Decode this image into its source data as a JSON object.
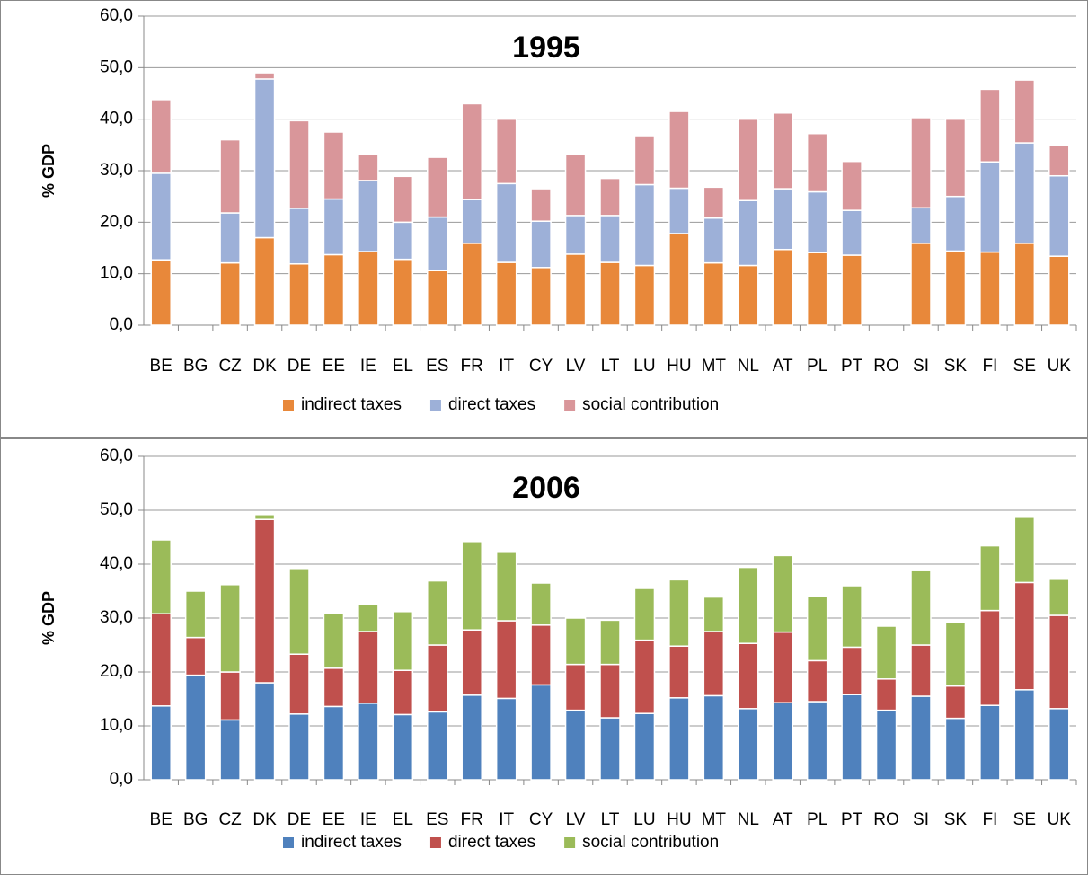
{
  "chart_data": [
    {
      "type": "bar",
      "stacked": true,
      "title": "1995",
      "y_label": "% GDP",
      "categories": [
        "BE",
        "BG",
        "CZ",
        "DK",
        "DE",
        "EE",
        "IE",
        "EL",
        "ES",
        "FR",
        "IT",
        "CY",
        "LV",
        "LT",
        "LU",
        "HU",
        "MT",
        "NL",
        "AT",
        "PL",
        "PT",
        "RO",
        "SI",
        "SK",
        "FI",
        "SE",
        "UK"
      ],
      "series": [
        {
          "name": "indirect taxes",
          "color": "#e8883a",
          "values": [
            12.7,
            null,
            12.1,
            17.0,
            11.9,
            13.7,
            14.3,
            12.8,
            10.6,
            15.9,
            12.2,
            11.2,
            13.8,
            12.2,
            11.6,
            17.8,
            12.1,
            11.6,
            14.7,
            14.1,
            13.6,
            null,
            15.9,
            14.4,
            14.2,
            15.9,
            13.4
          ]
        },
        {
          "name": "direct taxes",
          "color": "#9db0d8",
          "values": [
            16.8,
            null,
            9.7,
            30.8,
            10.8,
            10.8,
            13.8,
            7.2,
            10.4,
            8.5,
            15.3,
            9.0,
            7.5,
            9.1,
            15.7,
            8.8,
            8.7,
            12.6,
            11.8,
            11.8,
            8.7,
            null,
            6.9,
            10.6,
            17.5,
            19.5,
            15.6
          ]
        },
        {
          "name": "social contribution",
          "color": "#d9969a",
          "values": [
            14.3,
            null,
            14.2,
            1.2,
            17.0,
            13.0,
            5.1,
            8.9,
            11.6,
            18.6,
            12.5,
            6.3,
            11.9,
            7.2,
            9.5,
            14.9,
            6.0,
            15.8,
            14.7,
            11.3,
            9.5,
            null,
            17.5,
            15.0,
            14.1,
            12.2,
            6.0
          ]
        }
      ],
      "ylim": [
        0,
        60
      ],
      "yticks": [
        {
          "value": 0,
          "label": "0,0"
        },
        {
          "value": 10,
          "label": "10,0"
        },
        {
          "value": 20,
          "label": "20,0"
        },
        {
          "value": 30,
          "label": "30,0"
        },
        {
          "value": 40,
          "label": "40,0"
        },
        {
          "value": 50,
          "label": "50,0"
        },
        {
          "value": 60,
          "label": "60,0"
        }
      ],
      "grid": true,
      "legend": "bottom"
    },
    {
      "type": "bar",
      "stacked": true,
      "title": "2006",
      "y_label": "% GDP",
      "categories": [
        "BE",
        "BG",
        "CZ",
        "DK",
        "DE",
        "EE",
        "IE",
        "EL",
        "ES",
        "FR",
        "IT",
        "CY",
        "LV",
        "LT",
        "LU",
        "HU",
        "MT",
        "NL",
        "AT",
        "PL",
        "PT",
        "RO",
        "SI",
        "SK",
        "FI",
        "SE",
        "UK"
      ],
      "series": [
        {
          "name": "indirect taxes",
          "color": "#4f81bd",
          "values": [
            13.7,
            19.4,
            11.1,
            18.0,
            12.2,
            13.6,
            14.2,
            12.1,
            12.6,
            15.7,
            15.1,
            17.6,
            12.9,
            11.5,
            12.3,
            15.2,
            15.6,
            13.2,
            14.3,
            14.5,
            15.8,
            12.9,
            15.5,
            11.4,
            13.8,
            16.7,
            13.2
          ]
        },
        {
          "name": "direct taxes",
          "color": "#c0504d",
          "values": [
            17.1,
            7.0,
            8.9,
            30.3,
            11.1,
            7.1,
            13.3,
            8.2,
            12.4,
            12.1,
            14.4,
            11.1,
            8.5,
            9.9,
            13.6,
            9.6,
            11.9,
            12.1,
            13.1,
            7.6,
            8.8,
            5.8,
            9.5,
            6.0,
            17.6,
            19.9,
            17.3
          ]
        },
        {
          "name": "social contribution",
          "color": "#9bbb59",
          "values": [
            13.7,
            8.6,
            16.2,
            0.9,
            15.9,
            10.1,
            5.0,
            10.9,
            11.9,
            16.4,
            12.7,
            7.8,
            8.6,
            8.2,
            9.6,
            12.3,
            6.4,
            14.1,
            14.2,
            11.9,
            11.4,
            9.8,
            13.8,
            11.8,
            12.0,
            12.1,
            6.7
          ]
        }
      ],
      "ylim": [
        0,
        60
      ],
      "yticks": [
        {
          "value": 0,
          "label": "0,0"
        },
        {
          "value": 10,
          "label": "10,0"
        },
        {
          "value": 20,
          "label": "20,0"
        },
        {
          "value": 30,
          "label": "30,0"
        },
        {
          "value": 40,
          "label": "40,0"
        },
        {
          "value": 50,
          "label": "50,0"
        },
        {
          "value": 60,
          "label": "60,0"
        }
      ],
      "grid": true,
      "legend": "bottom"
    }
  ]
}
